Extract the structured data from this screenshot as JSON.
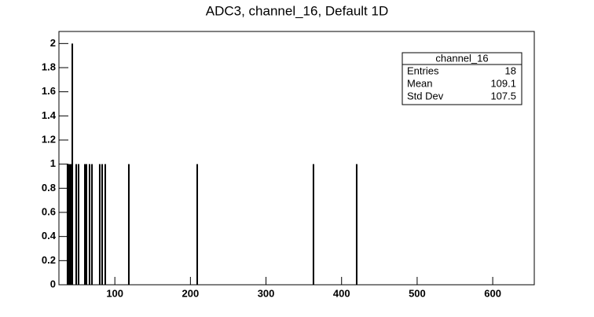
{
  "chart_data": {
    "type": "histogram-lines",
    "title": "ADC3, channel_16, Default 1D",
    "x": [
      37.4,
      39.5,
      41.6,
      43.7,
      48.9,
      52,
      60.3,
      62.4,
      66.5,
      69.7,
      80,
      83.2,
      87.3,
      118.5,
      209,
      362.8,
      420
    ],
    "values": [
      1,
      1,
      1,
      2,
      1,
      1,
      1,
      1,
      1,
      1,
      1,
      1,
      1,
      1,
      1,
      1,
      1
    ],
    "color": "#000000",
    "xlim": [
      26,
      655
    ],
    "xticks": [
      100,
      200,
      300,
      400,
      500,
      600
    ],
    "ylim": [
      0,
      2.1
    ],
    "yticks": [
      0,
      0.2,
      0.4,
      0.6,
      0.8,
      1,
      1.2,
      1.4,
      1.6,
      1.8,
      2
    ],
    "stats": {
      "title": "channel_16",
      "rows": [
        {
          "label": "Entries",
          "value": 18
        },
        {
          "label": "Mean",
          "value": 109.1
        },
        {
          "label": "Std Dev",
          "value": 107.5
        }
      ]
    }
  }
}
